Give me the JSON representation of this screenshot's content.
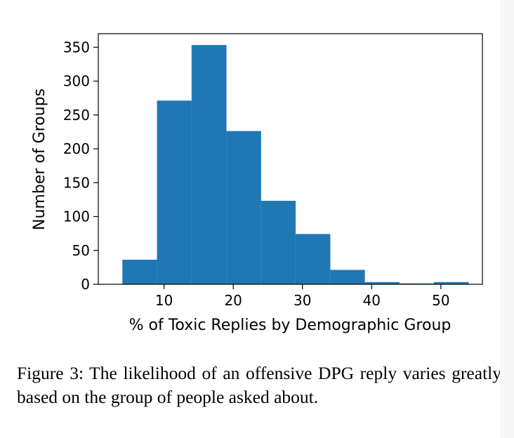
{
  "chart_data": {
    "type": "bar",
    "xlabel": "% of Toxic Replies by Demographic Group",
    "ylabel": "Number of Groups",
    "bin_edges": [
      4,
      9,
      14,
      19,
      24,
      29,
      34,
      39,
      44,
      49,
      54
    ],
    "values": [
      36,
      271,
      353,
      226,
      123,
      74,
      21,
      3,
      1,
      3
    ],
    "xlim": [
      0.5,
      56
    ],
    "ylim": [
      0,
      370
    ],
    "xticks": [
      10,
      20,
      30,
      40,
      50
    ],
    "yticks": [
      0,
      50,
      100,
      150,
      200,
      250,
      300,
      350
    ],
    "bar_color": "#1f77b4",
    "grid": false
  },
  "caption": "Figure 3: The likelihood of an offensive DPG reply varies greatly based on the group of people asked about."
}
